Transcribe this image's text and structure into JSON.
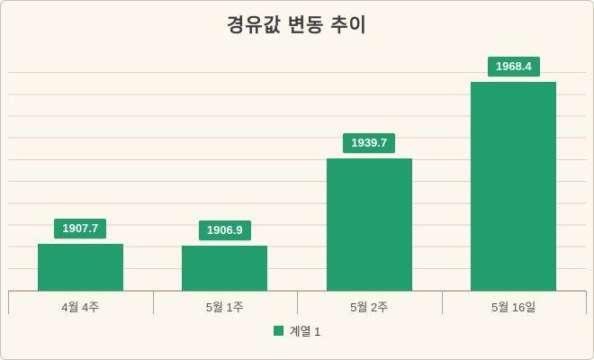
{
  "chart_data": {
    "type": "bar",
    "title": "경유값 변동 추이",
    "categories": [
      "4월 4주",
      "5월 1주",
      "5월 2주",
      "5월 16일"
    ],
    "values": [
      1907.7,
      1906.9,
      1939.7,
      1968.4
    ],
    "series_name": "계열 1",
    "ylim": [
      1890,
      1980
    ],
    "grid": true,
    "legend_position": "bottom",
    "bar_color": "#229e6c",
    "label_box_color": "#229e6c",
    "background_color": "#fbf7ec",
    "gridline_color": "#dcd6c3"
  }
}
